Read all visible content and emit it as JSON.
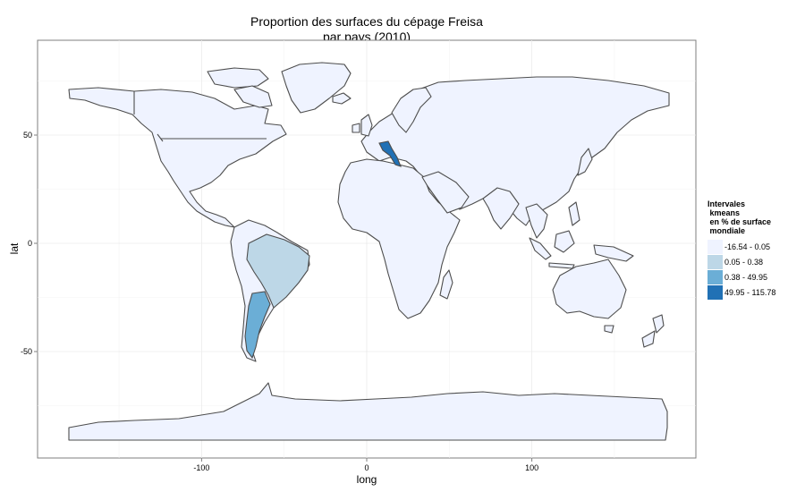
{
  "title": {
    "line1": "Proportion des surfaces du cépage Freisa",
    "line2": "par pays (2010)"
  },
  "axes": {
    "xlabel": "long",
    "ylabel": "lat",
    "xticks": [
      {
        "value": -100,
        "label": "-100"
      },
      {
        "value": 0,
        "label": "0"
      },
      {
        "value": 100,
        "label": "100"
      }
    ],
    "yticks": [
      {
        "value": 50,
        "label": "50"
      },
      {
        "value": 0,
        "label": "0"
      },
      {
        "value": -50,
        "label": "-50"
      }
    ],
    "xlim": [
      -198,
      200
    ],
    "ylim": [
      -100,
      94
    ]
  },
  "legend": {
    "title_line1": "Intervales",
    "title_line2": " kmeans",
    "title_line3": " en % de surface",
    "title_line4": " mondiale",
    "items": [
      {
        "label": "-16.54 - 0.05",
        "color": "#eff3ff"
      },
      {
        "label": "0.05 - 0.38",
        "color": "#bdd7e7"
      },
      {
        "label": "0.38 - 49.95",
        "color": "#6baed6"
      },
      {
        "label": "49.95 - 115.78",
        "color": "#2171b5"
      }
    ]
  },
  "colors": {
    "land_default": "#eff3ff",
    "border": "#4d4d4d",
    "grid": "#ebebeb",
    "panel_border": "#7f7f7f"
  },
  "regions_highlighted": [
    {
      "name": "Brazil",
      "class": "0.05 - 0.38"
    },
    {
      "name": "Argentina",
      "class": "0.38 - 49.95"
    },
    {
      "name": "Italy",
      "class": "49.95 - 115.78"
    }
  ]
}
